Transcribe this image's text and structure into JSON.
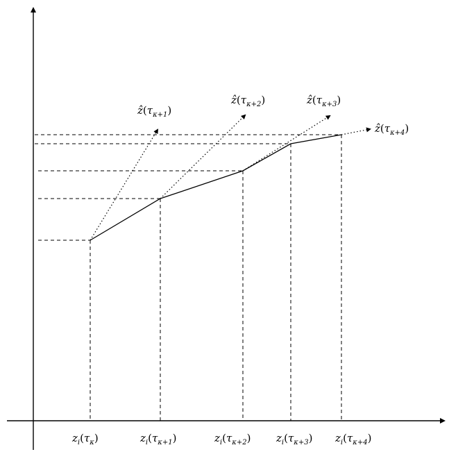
{
  "diagram": {
    "x_labels": [
      {
        "main": "z",
        "sub": "i",
        "arg": "τ",
        "arg_sub": "κ"
      },
      {
        "main": "z",
        "sub": "i",
        "arg": "τ",
        "arg_sub": "κ+1"
      },
      {
        "main": "z",
        "sub": "i",
        "arg": "τ",
        "arg_sub": "κ+2"
      },
      {
        "main": "z",
        "sub": "i",
        "arg": "τ",
        "arg_sub": "κ+3"
      },
      {
        "main": "z",
        "sub": "i",
        "arg": "τ",
        "arg_sub": "κ+4"
      }
    ],
    "prediction_labels": [
      {
        "main": "ẑ",
        "arg": "τ",
        "arg_sub": "κ+1"
      },
      {
        "main": "ẑ",
        "arg": "τ",
        "arg_sub": "κ+2"
      },
      {
        "main": "ẑ",
        "arg": "τ",
        "arg_sub": "κ+3"
      },
      {
        "main": "ẑ",
        "arg": "τ",
        "arg_sub": "κ+4"
      }
    ]
  }
}
